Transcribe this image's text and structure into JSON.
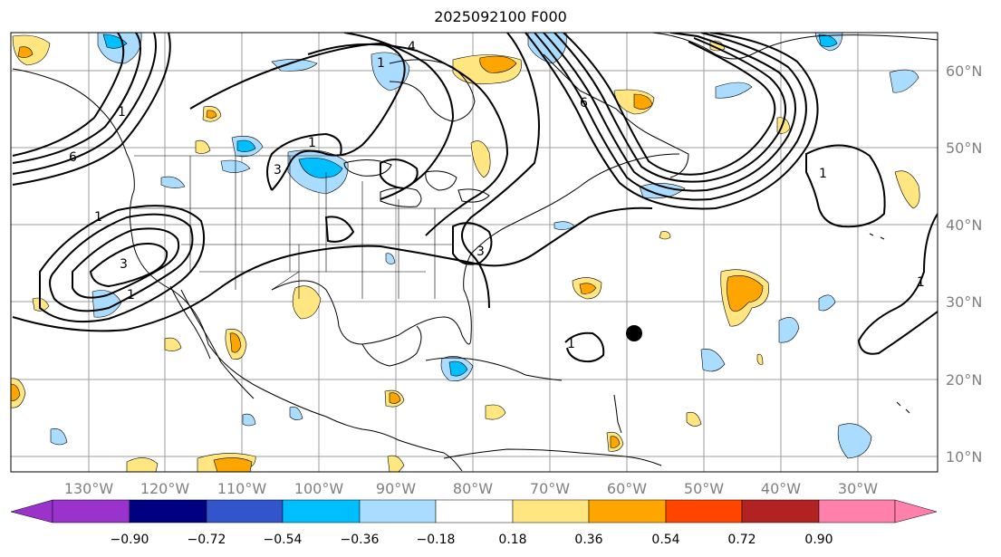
{
  "title": "2025092100 F000",
  "lon_labels": [
    "130°W",
    "120°W",
    "110°W",
    "100°W",
    "90°W",
    "80°W",
    "70°W",
    "60°W",
    "50°W",
    "40°W",
    "30°W"
  ],
  "lat_labels": [
    "60°N",
    "50°N",
    "40°N",
    "30°N",
    "20°N",
    "10°N"
  ],
  "colorbar": {
    "ticks": [
      "−0.90",
      "−0.72",
      "−0.54",
      "−0.36",
      "−0.18",
      "0.18",
      "0.36",
      "0.54",
      "0.72",
      "0.90"
    ],
    "colors": [
      "#9933cc",
      "#000080",
      "#3355cc",
      "#00bfff",
      "#aadcff",
      "#ffffff",
      "#ffe680",
      "#ffa500",
      "#ff4500",
      "#b22222",
      "#ff80aa"
    ]
  },
  "contour_labels": [
    "6",
    "4",
    "1",
    "3",
    "1",
    "6",
    "1",
    "1",
    "3",
    "1",
    "1",
    "3",
    "1",
    "1"
  ],
  "colors": {
    "yellow": "#ffe680",
    "orange": "#ffa500",
    "red": "#ff4500",
    "lightblue": "#aadcff",
    "blue": "#00bfff",
    "grid": "#9e9e9e"
  }
}
